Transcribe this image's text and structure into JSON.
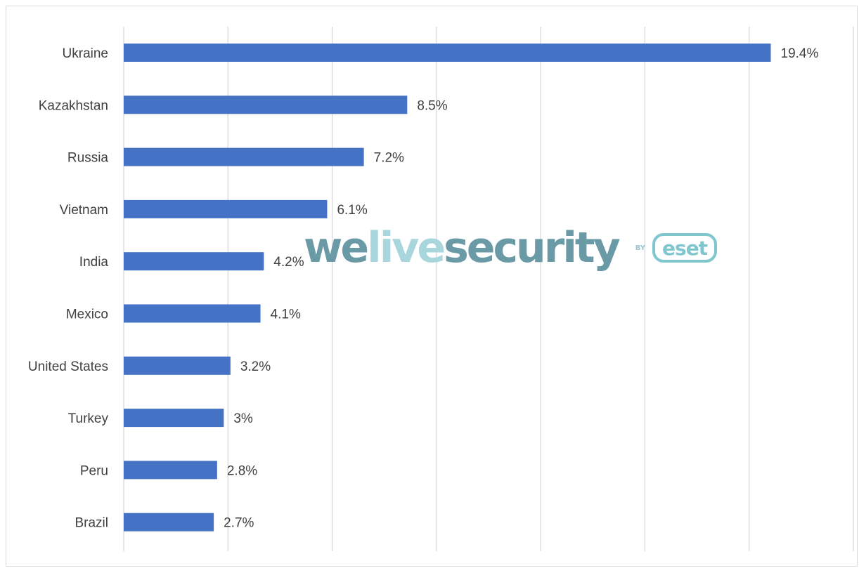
{
  "chart_data": {
    "type": "bar",
    "orientation": "horizontal",
    "categories": [
      "Ukraine",
      "Kazakhstan",
      "Russia",
      "Vietnam",
      "India",
      "Mexico",
      "United States",
      "Turkey",
      "Peru",
      "Brazil"
    ],
    "values": [
      19.4,
      8.5,
      7.2,
      6.1,
      4.2,
      4.1,
      3.2,
      3,
      2.8,
      2.7
    ],
    "value_labels": [
      "19.4%",
      "8.5%",
      "7.2%",
      "6.1%",
      "4.2%",
      "4.1%",
      "3.2%",
      "3%",
      "2.8%",
      "2.7%"
    ],
    "title": "",
    "xlabel": "",
    "ylabel": "",
    "xlim": [
      0,
      22.5
    ],
    "gridlines": [
      0,
      3.125,
      6.25,
      9.375,
      12.5,
      15.625,
      18.75,
      21.875
    ],
    "grid": true,
    "legend": "none",
    "bar_color": "#4472c4"
  },
  "watermark": {
    "part1": "we",
    "part2": "live",
    "part3": "security",
    "by": "BY",
    "brand": "eset"
  }
}
